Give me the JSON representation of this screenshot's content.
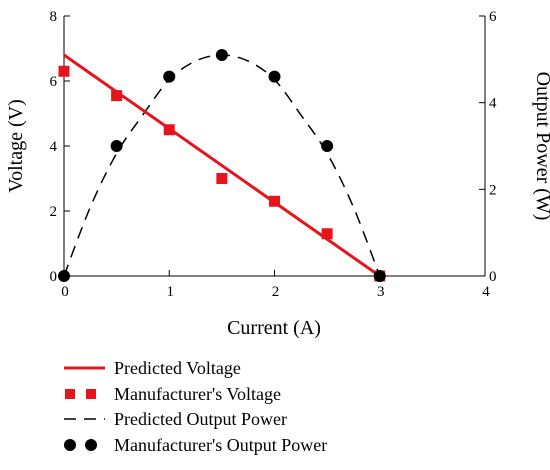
{
  "chart_data": {
    "type": "line",
    "xlabel": "Current (A)",
    "ylabel_left": "Voltage (V)",
    "ylabel_right": "Output Power (W)",
    "xlim": [
      0,
      4
    ],
    "ylim_left": [
      0,
      8
    ],
    "ylim_right": [
      0,
      6
    ],
    "x_ticks": [
      "0",
      "1",
      "2",
      "3",
      "4"
    ],
    "y_left_ticks": [
      "0",
      "2",
      "4",
      "6",
      "8"
    ],
    "y_right_ticks": [
      "0",
      "2",
      "4",
      "6"
    ],
    "grid": false,
    "series": [
      {
        "name": "Predicted Voltage",
        "axis": "left",
        "style": "solid-line",
        "color": "#e8141c",
        "x": [
          0,
          3
        ],
        "y": [
          6.8,
          0
        ]
      },
      {
        "name": "Manufacturer's Voltage",
        "axis": "left",
        "style": "square-markers",
        "color": "#e8141c",
        "x": [
          0,
          0.5,
          1,
          1.5,
          2,
          2.5,
          3
        ],
        "y": [
          6.3,
          5.55,
          4.5,
          3.0,
          2.3,
          1.3,
          0
        ]
      },
      {
        "name": "Predicted Output Power",
        "axis": "right",
        "style": "dashed-line",
        "color": "#000000",
        "x": [
          0,
          0.25,
          0.5,
          0.75,
          1,
          1.25,
          1.5,
          1.75,
          2,
          2.25,
          2.5,
          2.75,
          3
        ],
        "y": [
          0,
          1.59,
          2.83,
          3.72,
          4.53,
          4.96,
          5.1,
          4.96,
          4.53,
          3.72,
          2.83,
          1.59,
          0
        ]
      },
      {
        "name": "Manufacturer's Output Power",
        "axis": "right",
        "style": "circle-markers",
        "color": "#000000",
        "x": [
          0,
          0.5,
          1,
          1.5,
          2,
          2.5,
          3
        ],
        "y": [
          0,
          3.0,
          4.6,
          5.1,
          4.6,
          3.0,
          0
        ]
      }
    ],
    "legend": {
      "placement": "bottom",
      "entries": [
        "Predicted Voltage",
        "Manufacturer's Voltage",
        "Predicted Output Power",
        "Manufacturer's Output Power"
      ]
    }
  }
}
